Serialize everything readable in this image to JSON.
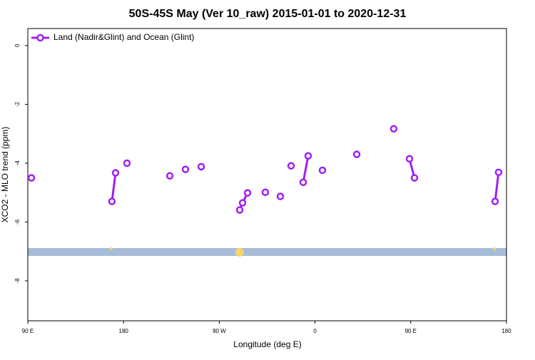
{
  "chart_data": {
    "type": "line",
    "title": "50S-45S May (Ver 10_raw)   2015-01-01 to 2020-12-31",
    "x_label": "Longitude (deg E)",
    "y_label": "XCO2 - MLO trend (ppm)",
    "xlim": [
      90,
      540
    ],
    "xticks": [
      {
        "value": 90,
        "label": "90 E"
      },
      180,
      {
        "value": 270,
        "label": "90 W"
      },
      {
        "value": 360,
        "label": "0"
      },
      {
        "value": 450,
        "label": "90 E"
      },
      {
        "value": 540,
        "label": "180"
      }
    ],
    "ylim": [
      -9.36,
      0.58
    ],
    "yticks": [
      0,
      -2,
      -4,
      -6,
      -8
    ],
    "legend": "top-left",
    "series": [
      {
        "name": "Land (Nadir&Glint) and Ocean (Glint)",
        "color": "#a020f0",
        "x": [
          93.4,
          null,
          169.1,
          172.5,
          null,
          183.2,
          null,
          223.5,
          null,
          238.2,
          null,
          253.0,
          null,
          289.2,
          291.9,
          296.6,
          null,
          313.3,
          null,
          327.4,
          null,
          337.5,
          null,
          348.9,
          353.6,
          null,
          367.0,
          null,
          399.2,
          null,
          434.0,
          null,
          448.8,
          453.5,
          null,
          529.3,
          532.6
        ],
        "values": [
          -4.5,
          null,
          -5.3,
          -4.33,
          null,
          -4.0,
          null,
          -4.43,
          null,
          -4.21,
          null,
          -4.12,
          null,
          -5.59,
          -5.35,
          -5.01,
          null,
          -4.99,
          null,
          -5.13,
          null,
          -4.09,
          null,
          -4.65,
          -3.75,
          null,
          -4.24,
          null,
          -3.7,
          null,
          -2.83,
          null,
          -3.85,
          -4.5,
          null,
          -5.3,
          -4.31
        ]
      }
    ]
  }
}
